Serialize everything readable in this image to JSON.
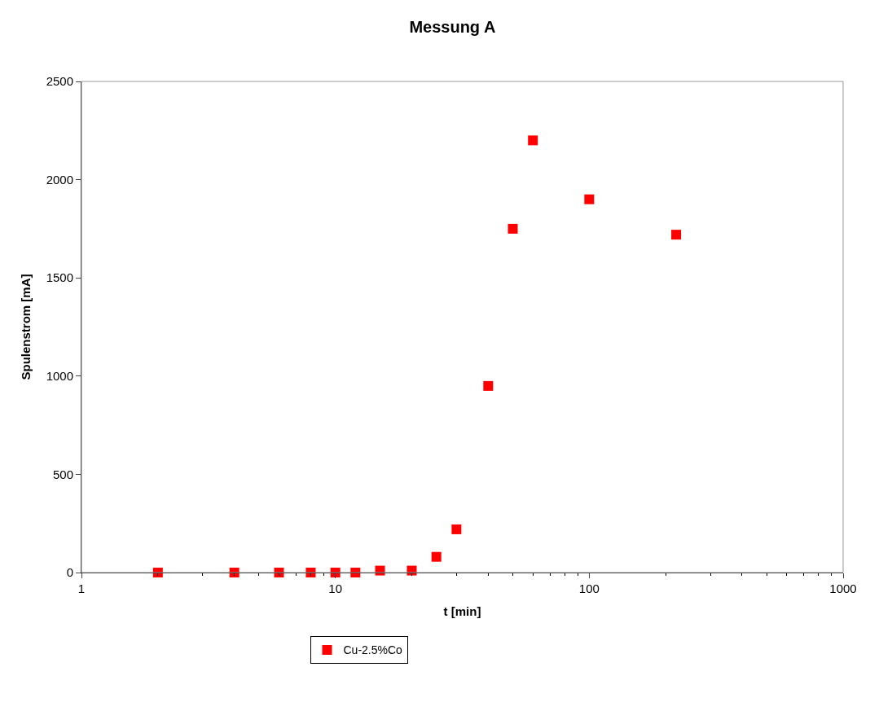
{
  "chart_data": {
    "type": "scatter",
    "title": "Messung A",
    "xlabel": "t [min]",
    "ylabel": "Spulenstrom [mA]",
    "x": [
      2,
      4,
      6,
      8,
      10,
      12,
      15,
      20,
      25,
      30,
      40,
      50,
      60,
      100,
      220
    ],
    "series": [
      {
        "name": "Cu-2.5%Co",
        "color": "#ff0000",
        "values": [
          0,
          0,
          0,
          0,
          0,
          0,
          10,
          10,
          80,
          220,
          950,
          1750,
          2200,
          1900,
          1720
        ]
      }
    ],
    "xlim": [
      1,
      1000
    ],
    "xticks": [
      1,
      10,
      100,
      1000
    ],
    "ylim": [
      0,
      2500
    ],
    "yticks": [
      0,
      500,
      1000,
      1500,
      2000,
      2500
    ],
    "log": "x",
    "legend": "bottom",
    "marker": "square"
  }
}
